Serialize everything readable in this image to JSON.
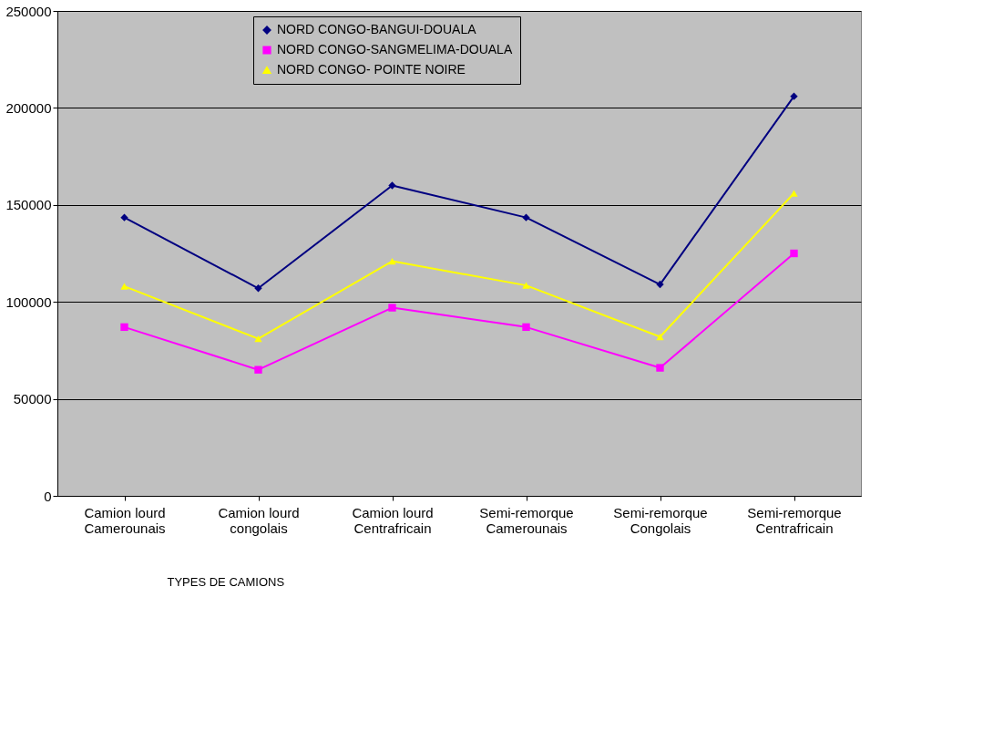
{
  "chart_data": {
    "type": "line",
    "xlabel": "TYPES DE CAMIONS",
    "categories": [
      "Camion lourd\nCamerounais",
      "Camion lourd\ncongolais",
      "Camion lourd\nCentrafricain",
      "Semi-remorque\nCamerounais",
      "Semi-remorque\nCongolais",
      "Semi-remorque\nCentrafricain"
    ],
    "series": [
      {
        "name": "NORD CONGO-BANGUI-DOUALA",
        "color": "#000080",
        "marker": "diamond",
        "values": [
          143500,
          107000,
          160000,
          143500,
          109000,
          206000
        ]
      },
      {
        "name": "NORD CONGO-SANGMELIMA-DOUALA",
        "color": "#ff00ff",
        "marker": "square",
        "values": [
          87000,
          65000,
          97000,
          87000,
          66000,
          125000
        ]
      },
      {
        "name": "NORD CONGO- POINTE NOIRE",
        "color": "#ffff00",
        "marker": "triangle",
        "values": [
          108000,
          81000,
          121000,
          108500,
          82000,
          156000
        ]
      }
    ],
    "ylim": [
      0,
      250000
    ],
    "yticks": [
      0,
      50000,
      100000,
      150000,
      200000,
      250000
    ],
    "grid": "y",
    "legend": "top",
    "line_style": "solid"
  }
}
